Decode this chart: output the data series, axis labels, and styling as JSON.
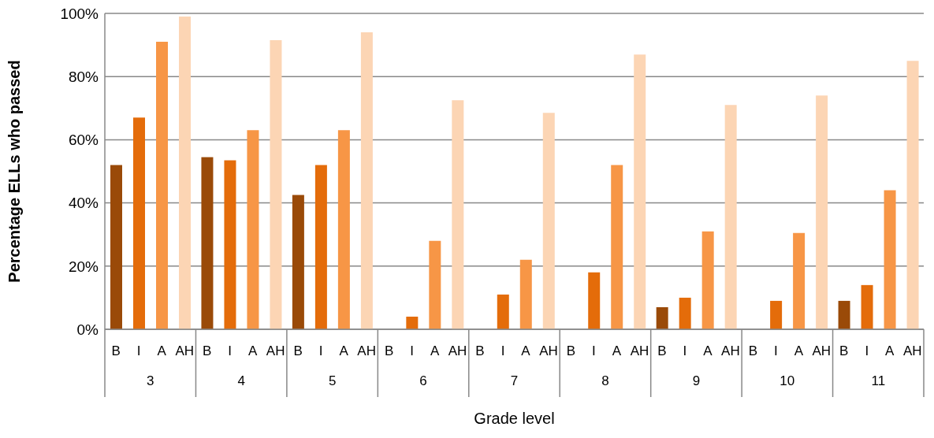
{
  "chart_data": {
    "type": "bar",
    "xlabel": "Grade level",
    "ylabel": "Percentage ELLs who passed",
    "categories": [
      "3",
      "4",
      "5",
      "6",
      "7",
      "8",
      "9",
      "10",
      "11"
    ],
    "series": [
      {
        "name": "B",
        "color": "#9a4a08",
        "values": [
          52,
          54.5,
          42.5,
          0,
          0,
          0,
          7,
          0,
          9
        ]
      },
      {
        "name": "I",
        "color": "#e46c0a",
        "values": [
          67,
          53.5,
          52,
          4,
          11,
          18,
          10,
          9,
          14
        ]
      },
      {
        "name": "A",
        "color": "#f79646",
        "values": [
          91,
          63,
          63,
          28,
          22,
          52,
          31,
          30.5,
          44
        ]
      },
      {
        "name": "AH",
        "color": "#fcd5b4",
        "values": [
          99,
          91.5,
          94,
          72.5,
          68.5,
          87,
          71,
          74,
          85
        ]
      }
    ],
    "ylim": [
      0,
      100
    ],
    "yticks": [
      {
        "value": 0,
        "label": "0%"
      },
      {
        "value": 20,
        "label": "20%"
      },
      {
        "value": 40,
        "label": "40%"
      },
      {
        "value": 60,
        "label": "60%"
      },
      {
        "value": 80,
        "label": "80%"
      },
      {
        "value": 100,
        "label": "100%"
      }
    ],
    "grid": "y",
    "legend": false
  }
}
